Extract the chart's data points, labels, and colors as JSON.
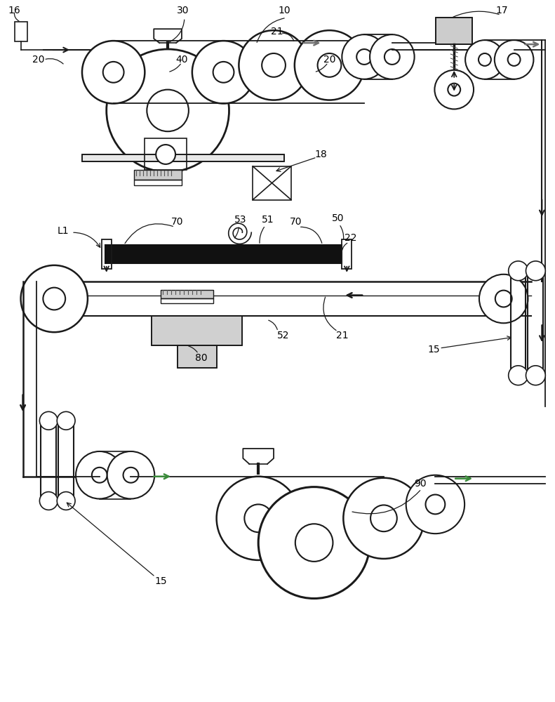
{
  "bg_color": "#ffffff",
  "lc": "#1a1a1a",
  "gc": "#3a8a3a",
  "ac": "#707070",
  "figsize": [
    7.91,
    10.0
  ],
  "dpi": 100
}
